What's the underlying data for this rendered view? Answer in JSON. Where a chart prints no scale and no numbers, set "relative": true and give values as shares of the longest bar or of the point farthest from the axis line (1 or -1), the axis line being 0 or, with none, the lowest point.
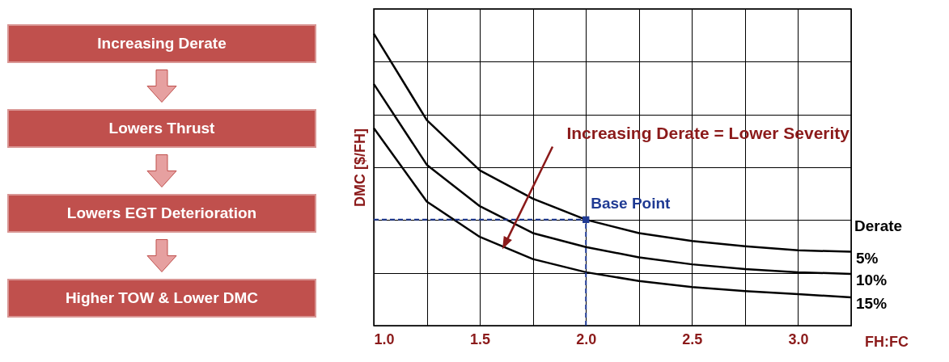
{
  "chart_data": [
    {
      "type": "other",
      "annotations": [
        "Increasing Derate",
        "Lowers Thrust",
        "Lowers EGT Deterioration",
        "Higher TOW & Lower DMC"
      ]
    },
    {
      "type": "line",
      "relative": true,
      "ylabel": "DMC [$/FH]",
      "xlabel": "FH:FC",
      "legend_title": "Derate",
      "x": [
        1.0,
        1.25,
        1.5,
        1.75,
        2.0,
        2.25,
        2.5,
        2.75,
        3.0,
        3.25
      ],
      "xlim": [
        1.0,
        3.25
      ],
      "xticks": [
        {
          "value": 1.0,
          "label": "1.0"
        },
        {
          "value": 1.25,
          "label": null
        },
        {
          "value": 1.5,
          "label": "1.5"
        },
        {
          "value": 1.75,
          "label": null
        },
        {
          "value": 2.0,
          "label": "2.0"
        },
        {
          "value": 2.25,
          "label": null
        },
        {
          "value": 2.5,
          "label": "2.5"
        },
        {
          "value": 2.75,
          "label": null
        },
        {
          "value": 3.0,
          "label": "3.0"
        },
        {
          "value": 3.25,
          "label": null
        }
      ],
      "grid": true,
      "marker": "none",
      "line_style": "solid",
      "series": [
        {
          "name": "5%",
          "color": "#000000",
          "values": [
            1.0,
            0.704,
            0.532,
            0.435,
            0.363,
            0.317,
            0.29,
            0.272,
            0.258,
            0.253
          ]
        },
        {
          "name": "10%",
          "color": "#000000",
          "values": [
            0.828,
            0.551,
            0.409,
            0.317,
            0.269,
            0.234,
            0.21,
            0.194,
            0.183,
            0.177
          ]
        },
        {
          "name": "15%",
          "color": "#000000",
          "values": [
            0.677,
            0.425,
            0.304,
            0.228,
            0.183,
            0.153,
            0.132,
            0.118,
            0.108,
            0.097
          ]
        }
      ],
      "ref_lines": [
        {
          "axis": "x",
          "value": 2.0,
          "color": "#1f3a93",
          "line_style": "dashed"
        },
        {
          "axis": "y",
          "value": 0.363,
          "color": "#1f3a93",
          "line_style": "dashed"
        }
      ],
      "annotations": [
        "Increasing Derate = Lower Severity",
        {
          "text": "Base Point",
          "x": 2.0,
          "y": 0.363
        }
      ]
    }
  ]
}
